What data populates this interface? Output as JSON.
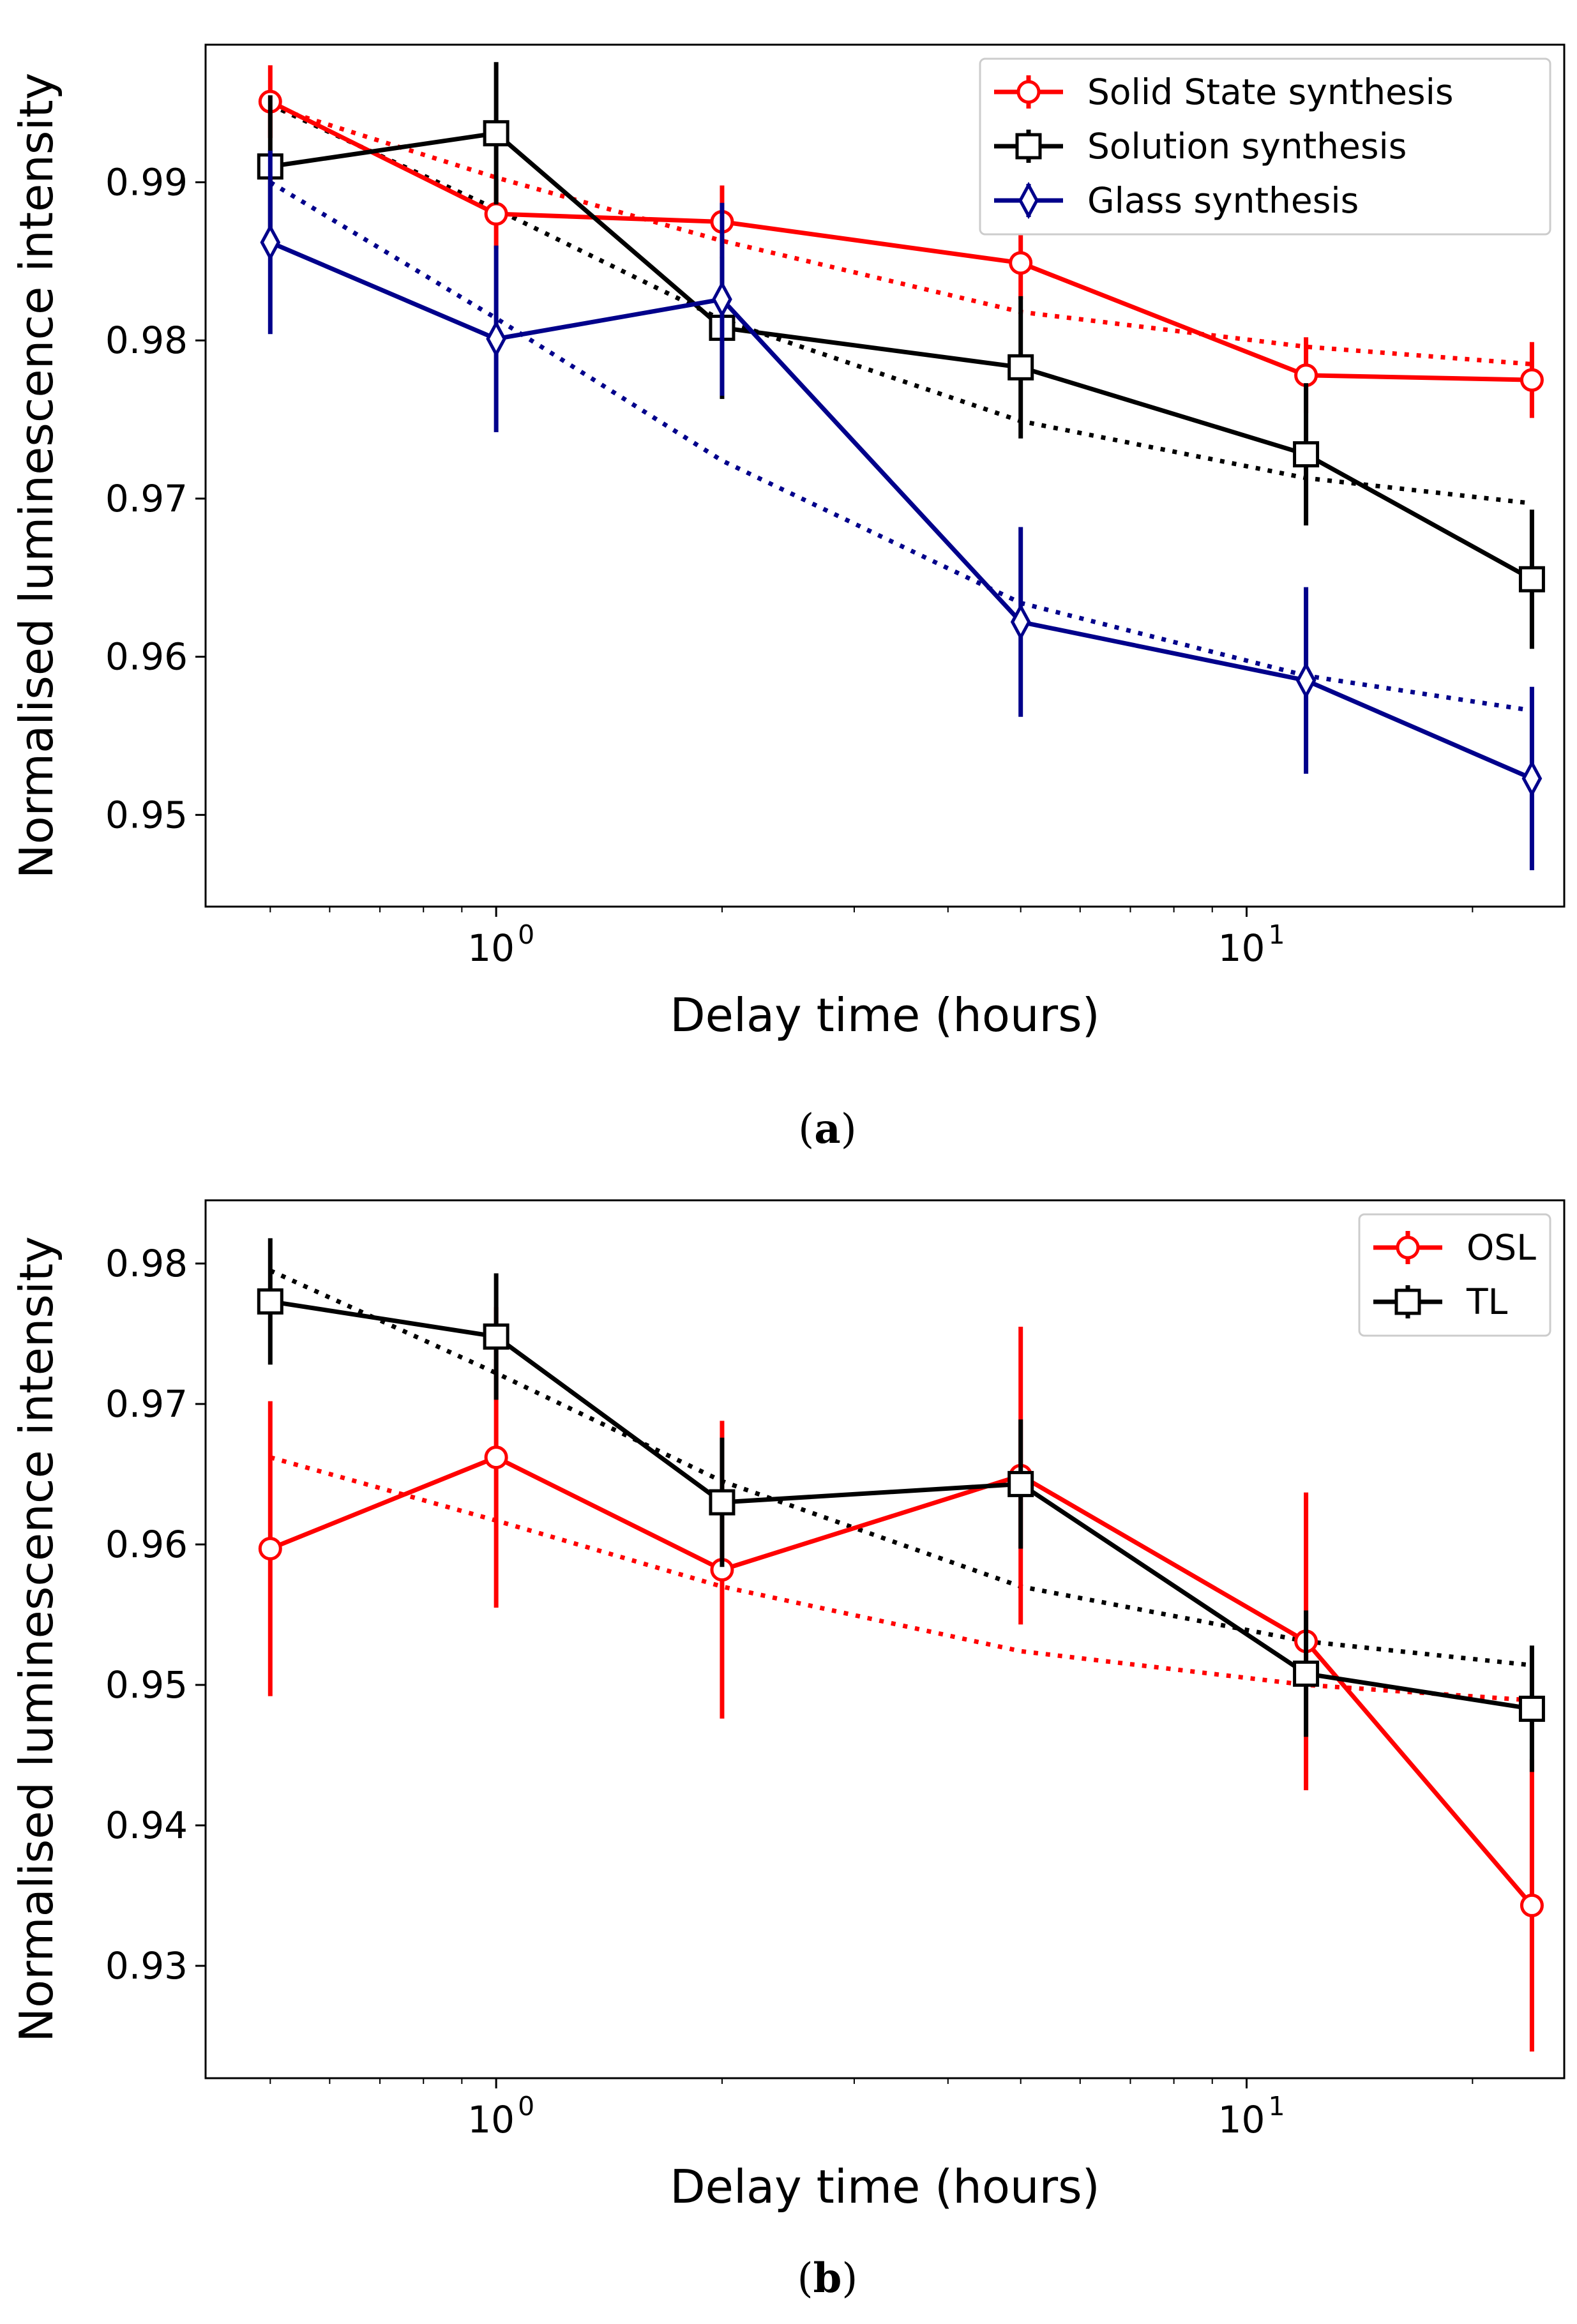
{
  "chart_data": [
    {
      "id": "a",
      "type": "line",
      "caption_label": "a",
      "xlabel": "Delay time (hours)",
      "ylabel": "Normalised luminescence intensity",
      "xscale": "log",
      "xlim": [
        0.41,
        26.5
      ],
      "ylim": [
        0.9442,
        0.9987
      ],
      "x_ticks": [
        {
          "value": 1,
          "base": "10",
          "exp": "0"
        },
        {
          "value": 10,
          "base": "10",
          "exp": "1"
        }
      ],
      "y_ticks": [
        {
          "value": 0.95,
          "label": "0.95"
        },
        {
          "value": 0.96,
          "label": "0.96"
        },
        {
          "value": 0.97,
          "label": "0.97"
        },
        {
          "value": 0.98,
          "label": "0.98"
        },
        {
          "value": 0.99,
          "label": "0.99"
        }
      ],
      "legend_position": "top-right",
      "x": [
        0.5,
        1,
        2,
        5,
        12,
        24
      ],
      "series": [
        {
          "name": "Solid State synthesis",
          "color": "#ff0000",
          "marker": "circle",
          "values": [
            0.9951,
            0.988,
            0.9875,
            0.9849,
            0.9778,
            0.9775
          ],
          "errors": [
            0.0023,
            0.0022,
            0.0023,
            0.0023,
            0.0024,
            0.0024
          ],
          "fit": [
            0.9948,
            0.9903,
            0.9863,
            0.9818,
            0.9796,
            0.9785
          ]
        },
        {
          "name": "Solution synthesis",
          "color": "#000000",
          "marker": "square",
          "values": [
            0.991,
            0.9931,
            0.9808,
            0.9783,
            0.9728,
            0.9649
          ],
          "errors": [
            0.0045,
            0.0045,
            0.0045,
            0.0045,
            0.0045,
            0.0044
          ],
          "fit": [
            0.9949,
            0.9883,
            0.9813,
            0.9749,
            0.9713,
            0.9697
          ]
        },
        {
          "name": "Glass synthesis",
          "color": "#00008b",
          "marker": "diamond",
          "values": [
            0.9862,
            0.9801,
            0.9826,
            0.9622,
            0.9585,
            0.9523
          ],
          "errors": [
            0.0058,
            0.0059,
            0.0061,
            0.006,
            0.0059,
            0.0058
          ],
          "fit": [
            0.99,
            0.9814,
            0.9724,
            0.9634,
            0.9588,
            0.9566
          ]
        }
      ]
    },
    {
      "id": "b",
      "type": "line",
      "caption_label": "b",
      "xlabel": "Delay time (hours)",
      "ylabel": "Normalised luminescence intensity",
      "xscale": "log",
      "xlim": [
        0.41,
        26.5
      ],
      "ylim": [
        0.922,
        0.9845
      ],
      "x_ticks": [
        {
          "value": 1,
          "base": "10",
          "exp": "0"
        },
        {
          "value": 10,
          "base": "10",
          "exp": "1"
        }
      ],
      "y_ticks": [
        {
          "value": 0.93,
          "label": "0.93"
        },
        {
          "value": 0.94,
          "label": "0.94"
        },
        {
          "value": 0.95,
          "label": "0.95"
        },
        {
          "value": 0.96,
          "label": "0.96"
        },
        {
          "value": 0.97,
          "label": "0.97"
        },
        {
          "value": 0.98,
          "label": "0.98"
        }
      ],
      "legend_position": "top-right",
      "x": [
        0.5,
        1,
        2,
        5,
        12,
        24
      ],
      "series": [
        {
          "name": "OSL",
          "color": "#ff0000",
          "marker": "circle",
          "values": [
            0.9597,
            0.9662,
            0.9582,
            0.9649,
            0.9531,
            0.9343
          ],
          "errors": [
            0.0105,
            0.0107,
            0.0106,
            0.0106,
            0.0106,
            0.0104
          ],
          "fit": [
            0.9662,
            0.9617,
            0.957,
            0.9524,
            0.95,
            0.9489
          ]
        },
        {
          "name": "TL",
          "color": "#000000",
          "marker": "square",
          "values": [
            0.9773,
            0.9748,
            0.963,
            0.9643,
            0.9508,
            0.9483
          ],
          "errors": [
            0.0045,
            0.0045,
            0.0046,
            0.0046,
            0.0045,
            0.0045
          ],
          "fit": [
            0.9795,
            0.9722,
            0.9645,
            0.957,
            0.9531,
            0.9514
          ]
        }
      ]
    }
  ]
}
